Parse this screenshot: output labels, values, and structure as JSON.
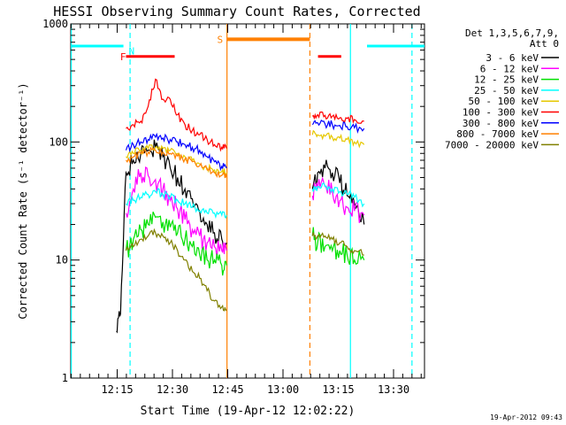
{
  "chart_data": {
    "type": "line",
    "title": "HESSI Observing Summary Count Rates, Corrected",
    "xlabel": "Start Time (19-Apr-12 12:02:22)",
    "ylabel": "Corrected Count Rate (s⁻¹ detector⁻¹)",
    "y_scale": "log",
    "ylim": [
      1,
      1000
    ],
    "xlim_minutes_after_start": [
      0,
      96
    ],
    "x_tick_labels": [
      {
        "label": "12:15",
        "t": 12.6
      },
      {
        "label": "12:30",
        "t": 27.6
      },
      {
        "label": "12:45",
        "t": 42.6
      },
      {
        "label": "13:00",
        "t": 57.6
      },
      {
        "label": "13:15",
        "t": 72.6
      },
      {
        "label": "13:30",
        "t": 87.6
      }
    ],
    "y_tick_labels": [
      {
        "label": "1",
        "v": 1
      },
      {
        "label": "10",
        "v": 10
      },
      {
        "label": "100",
        "v": 100
      },
      {
        "label": "1000",
        "v": 1000
      }
    ],
    "legend": {
      "placement": "right",
      "header": [
        "Det 1,3,5,6,7,9,",
        "Att 0"
      ],
      "entries": [
        {
          "name": "3 - 6 keV",
          "color": "#000000"
        },
        {
          "name": "6 - 12 keV",
          "color": "#ff00ff"
        },
        {
          "name": "12 - 25 keV",
          "color": "#00e000"
        },
        {
          "name": "25 - 50 keV",
          "color": "#00ffff"
        },
        {
          "name": "50 - 100 keV",
          "color": "#e6c800"
        },
        {
          "name": "100 - 300 keV",
          "color": "#ff0000"
        },
        {
          "name": "300 - 800 keV",
          "color": "#0000ff"
        },
        {
          "name": "800 - 7000 keV",
          "color": "#ff8000"
        },
        {
          "name": "7000 - 20000 keV",
          "color": "#808000"
        }
      ]
    },
    "segments": [
      {
        "t": [
          12.4,
          13.5,
          15,
          17,
          19,
          21,
          23,
          25,
          27,
          29,
          31,
          33,
          35,
          37,
          39,
          41,
          42.3
        ],
        "series": {
          "3 - 6 keV": [
            2.5,
            3.5,
            55,
            70,
            80,
            85,
            90,
            75,
            60,
            50,
            40,
            33,
            26,
            20,
            17,
            15,
            14
          ],
          "6 - 12 keV": [
            null,
            null,
            25,
            40,
            55,
            52,
            48,
            40,
            32,
            27,
            22,
            18,
            16,
            14,
            13,
            12,
            12
          ],
          "12 - 25 keV": [
            null,
            null,
            12,
            15,
            18,
            20,
            23,
            21,
            19,
            17,
            15,
            13,
            11,
            10,
            10,
            9,
            9
          ],
          "25 - 50 keV": [
            null,
            null,
            30,
            32,
            34,
            36,
            38,
            36,
            34,
            32,
            30,
            28,
            26,
            25,
            25,
            24,
            24
          ],
          "50 - 100 keV": [
            null,
            null,
            75,
            80,
            85,
            88,
            90,
            88,
            85,
            80,
            75,
            70,
            65,
            60,
            58,
            56,
            55
          ],
          "100 - 300 keV": [
            null,
            null,
            130,
            140,
            150,
            200,
            340,
            230,
            230,
            170,
            140,
            125,
            115,
            105,
            95,
            90,
            88
          ],
          "300 - 800 keV": [
            null,
            null,
            85,
            95,
            100,
            105,
            110,
            108,
            105,
            100,
            95,
            90,
            85,
            75,
            68,
            62,
            60
          ],
          "800 - 7000 keV": [
            null,
            null,
            70,
            75,
            80,
            82,
            85,
            82,
            80,
            76,
            72,
            68,
            63,
            58,
            55,
            52,
            50
          ],
          "7000 - 20000 keV": [
            null,
            null,
            12,
            13,
            15,
            16,
            17,
            16,
            14,
            12,
            10,
            8,
            7,
            5.5,
            4.5,
            4,
            3.8
          ]
        }
      },
      {
        "t": [
          65.6,
          67,
          69,
          71,
          73,
          75,
          77,
          79.6
        ],
        "series": {
          "3 - 6 keV": [
            40,
            55,
            60,
            55,
            45,
            35,
            30,
            20
          ],
          "6 - 12 keV": [
            35,
            40,
            42,
            38,
            32,
            28,
            26,
            24
          ],
          "12 - 25 keV": [
            16,
            14,
            13,
            12,
            12,
            11,
            10,
            10
          ],
          "25 - 50 keV": [
            40,
            42,
            42,
            40,
            38,
            36,
            34,
            30
          ],
          "50 - 100 keV": [
            115,
            115,
            112,
            110,
            108,
            105,
            100,
            95
          ],
          "100 - 300 keV": [
            165,
            170,
            168,
            165,
            160,
            158,
            155,
            150
          ],
          "300 - 800 keV": [
            140,
            145,
            142,
            140,
            138,
            135,
            132,
            130
          ],
          "800 - 7000 keV": [
            null,
            null,
            null,
            null,
            null,
            null,
            null,
            null
          ],
          "7000 - 20000 keV": [
            16,
            16,
            16,
            15,
            14,
            13,
            12,
            11
          ]
        }
      }
    ],
    "flag_bars": [
      {
        "label": "",
        "color": "#00ffff",
        "t_start": 0,
        "t_end": 14.3,
        "level": 650
      },
      {
        "label": "",
        "color": "#00ffff",
        "t_start": 80.4,
        "t_end": 96,
        "level": 650
      },
      {
        "label": "",
        "color": "#ff8000",
        "t_start": 42.4,
        "t_end": 64.9,
        "level": 740
      },
      {
        "label": "",
        "color": "#ff0000",
        "t_start": 15.0,
        "t_end": 28.2,
        "level": 530
      },
      {
        "label": "",
        "color": "#ff0000",
        "t_start": 67.1,
        "t_end": 73.4,
        "level": 530
      }
    ],
    "markers": [
      {
        "label": "N",
        "color": "#00ffff",
        "t": 16.5,
        "level": 590
      },
      {
        "label": "F",
        "color": "#ff0000",
        "t": 14.2,
        "level": 530
      },
      {
        "label": "S",
        "color": "#ff8000",
        "t": 40.5,
        "level": 740
      }
    ],
    "vertical_lines": [
      {
        "t": 0.15,
        "color": "#00ffff",
        "style": "solid"
      },
      {
        "t": 16.1,
        "color": "#00ffff",
        "style": "dashed"
      },
      {
        "t": 42.4,
        "color": "#ff8000",
        "style": "solid"
      },
      {
        "t": 64.9,
        "color": "#ff8000",
        "style": "dashed"
      },
      {
        "t": 75.9,
        "color": "#00ffff",
        "style": "solid"
      },
      {
        "t": 92.6,
        "color": "#00ffff",
        "style": "dashed"
      }
    ],
    "grid": false
  },
  "footer": {
    "timestamp": "19-Apr-2012 09:43"
  }
}
